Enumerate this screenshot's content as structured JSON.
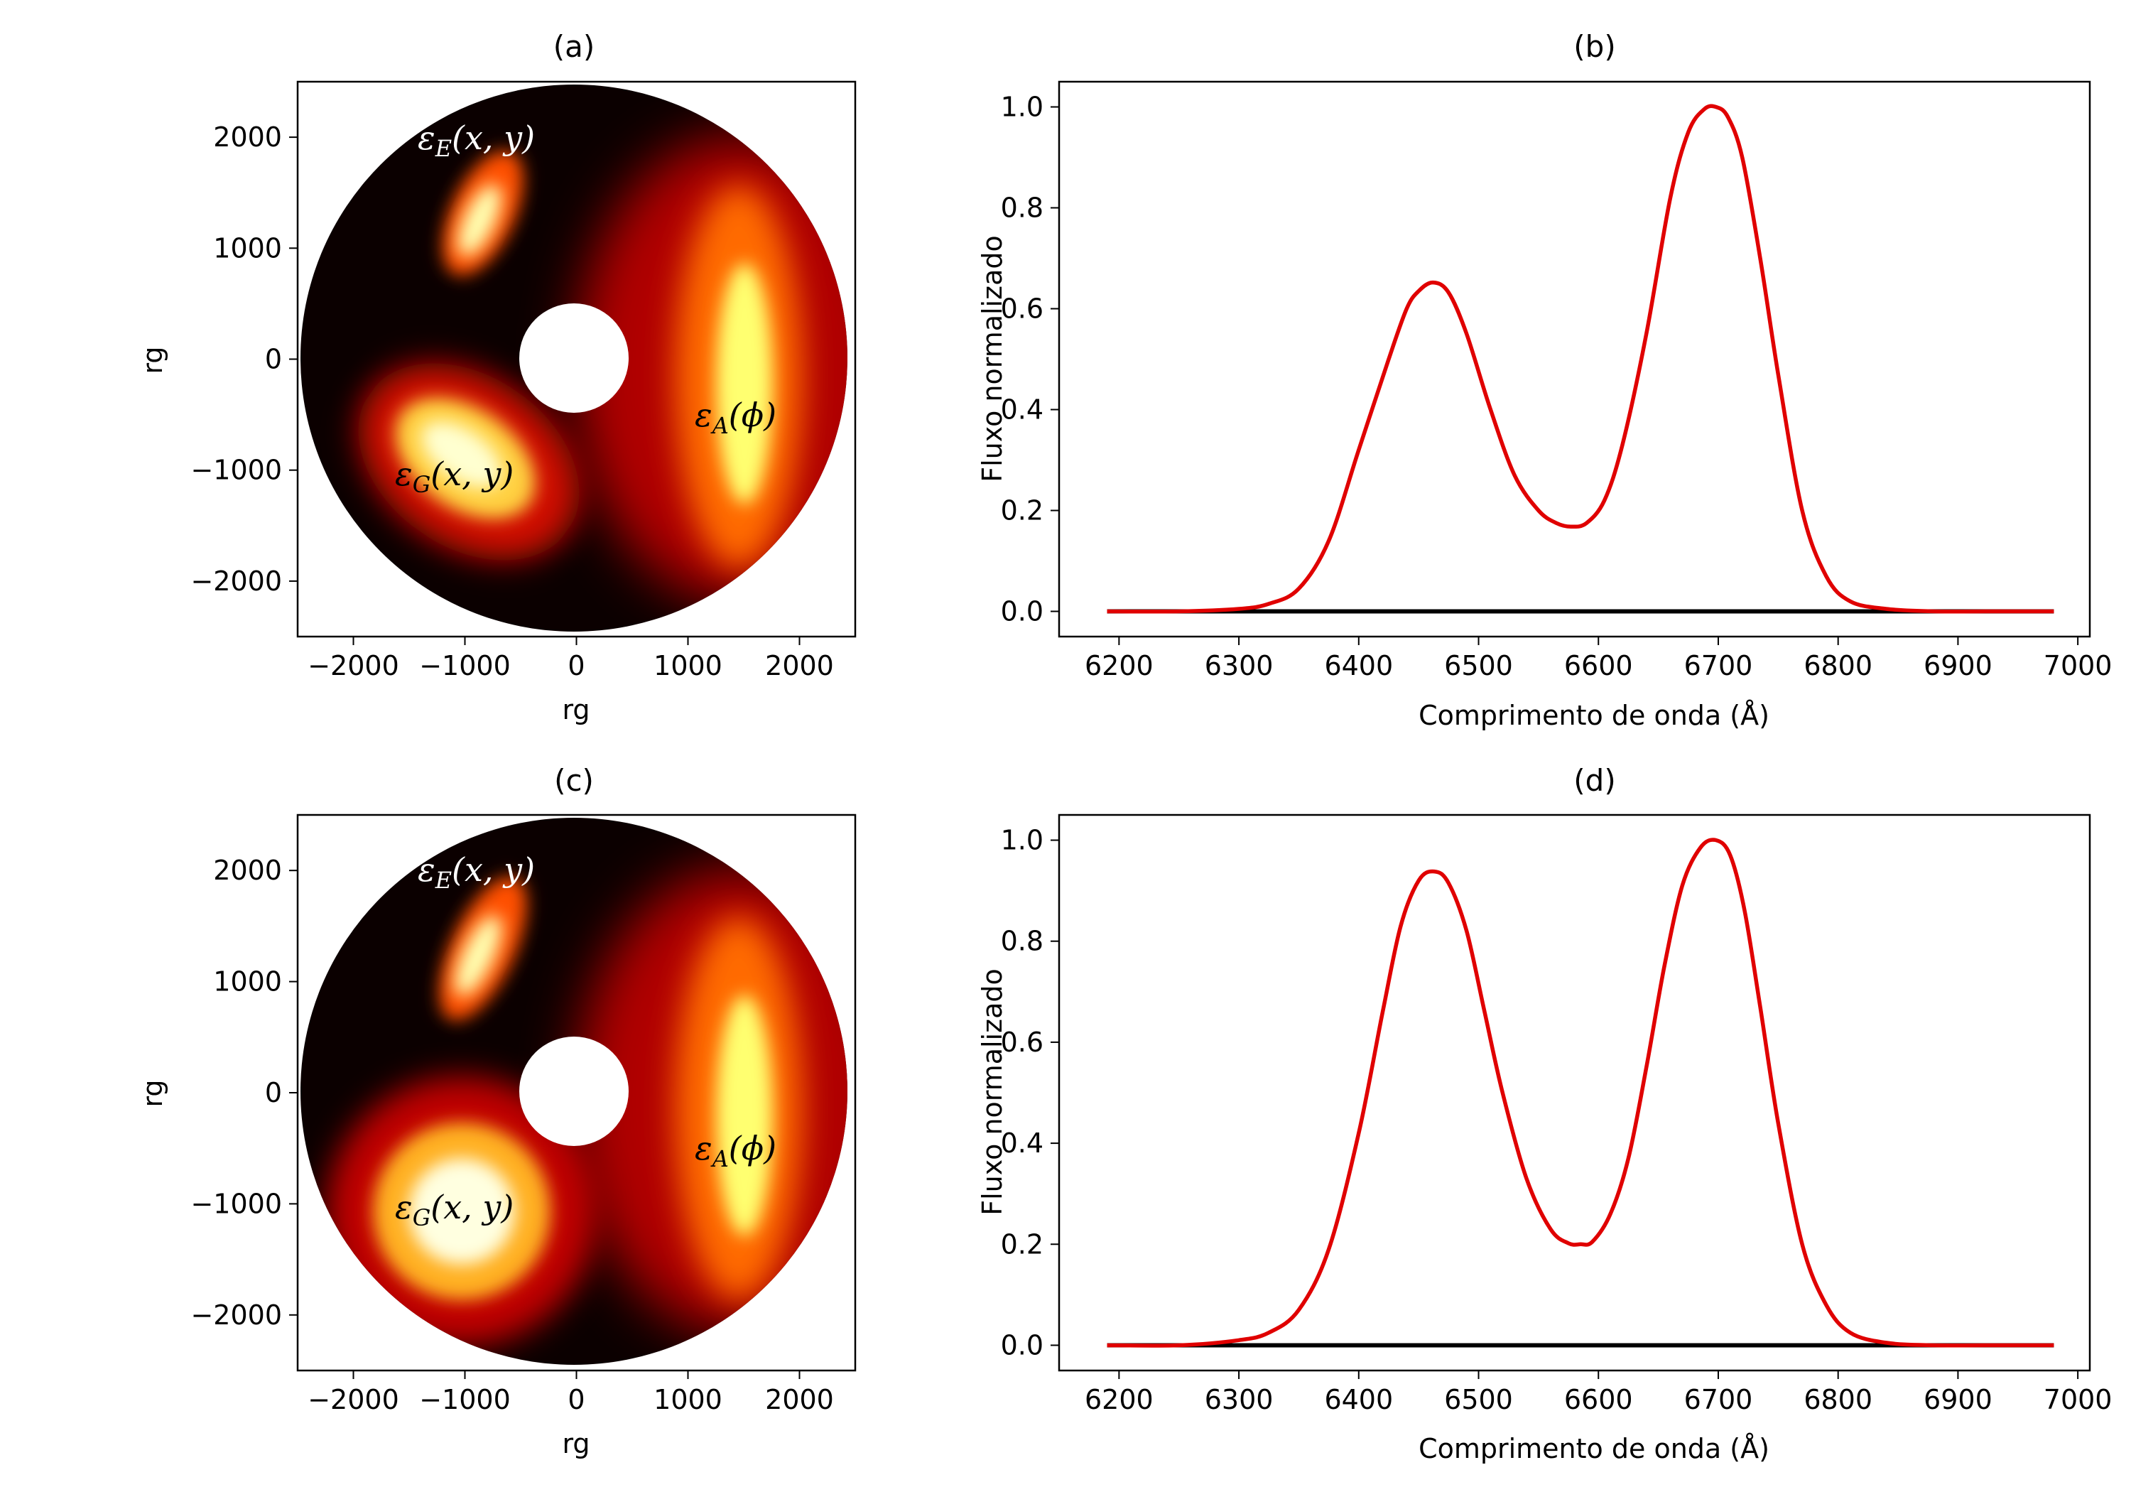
{
  "figure": {
    "disk_panels": [
      {
        "id": "a",
        "title": "(a)",
        "xlabel": "rg",
        "ylabel": "rg",
        "xlim": [
          -2500,
          2500
        ],
        "ylim": [
          -2500,
          2500
        ],
        "xticks": [
          -2000,
          -1000,
          0,
          1000,
          2000
        ],
        "yticks": [
          -2000,
          -1000,
          0,
          1000,
          2000
        ],
        "xtick_labels": [
          "−2000",
          "−1000",
          "0",
          "1000",
          "2000"
        ],
        "ytick_labels": [
          "−2000",
          "−1000",
          "0",
          "1000",
          "2000"
        ],
        "labels": {
          "E": {
            "sym": "ε",
            "sub": "E",
            "args": "(x, y)",
            "color": "#ffffff"
          },
          "G": {
            "sym": "ε",
            "sub": "G",
            "args": "(x, y)",
            "color": "#000000"
          },
          "A": {
            "sym": "ε",
            "sub": "A",
            "args": "(ϕ)",
            "color": "#000000"
          }
        }
      },
      {
        "id": "c",
        "title": "(c)",
        "xlabel": "rg",
        "ylabel": "rg",
        "xlim": [
          -2500,
          2500
        ],
        "ylim": [
          -2500,
          2500
        ],
        "xticks": [
          -2000,
          -1000,
          0,
          1000,
          2000
        ],
        "yticks": [
          -2000,
          -1000,
          0,
          1000,
          2000
        ],
        "xtick_labels": [
          "−2000",
          "−1000",
          "0",
          "1000",
          "2000"
        ],
        "ytick_labels": [
          "−2000",
          "−1000",
          "0",
          "1000",
          "2000"
        ],
        "labels": {
          "E": {
            "sym": "ε",
            "sub": "E",
            "args": "(x, y)",
            "color": "#ffffff"
          },
          "G": {
            "sym": "ε",
            "sub": "G",
            "args": "(x, y)",
            "color": "#000000"
          },
          "A": {
            "sym": "ε",
            "sub": "A",
            "args": "(ϕ)",
            "color": "#000000"
          }
        }
      }
    ],
    "colormap": "hot"
  },
  "chart_data": [
    {
      "type": "line",
      "panel": "b",
      "title": "(b)",
      "xlabel": "Comprimento de onda (Å)",
      "ylabel": "Fluxo normalizado",
      "xlim": [
        6150,
        7010
      ],
      "ylim": [
        -0.05,
        1.05
      ],
      "xticks": [
        6200,
        6300,
        6400,
        6500,
        6600,
        6700,
        6800,
        6900,
        7000
      ],
      "yticks": [
        0.0,
        0.2,
        0.4,
        0.6,
        0.8,
        1.0
      ],
      "ytick_labels": [
        "0.0",
        "0.2",
        "0.4",
        "0.6",
        "0.8",
        "1.0"
      ],
      "series": [
        {
          "color": "#e00000",
          "x": [
            6190,
            6250,
            6300,
            6325,
            6350,
            6375,
            6400,
            6425,
            6440,
            6450,
            6462,
            6475,
            6490,
            6510,
            6530,
            6550,
            6565,
            6577,
            6590,
            6605,
            6620,
            6640,
            6660,
            6675,
            6688,
            6698,
            6708,
            6720,
            6735,
            6750,
            6770,
            6790,
            6810,
            6840,
            6880,
            6930,
            6980
          ],
          "y": [
            0.0,
            0.0,
            0.005,
            0.015,
            0.045,
            0.14,
            0.32,
            0.5,
            0.6,
            0.635,
            0.652,
            0.632,
            0.55,
            0.4,
            0.27,
            0.2,
            0.175,
            0.168,
            0.175,
            0.22,
            0.33,
            0.55,
            0.82,
            0.95,
            0.995,
            1.0,
            0.98,
            0.9,
            0.7,
            0.47,
            0.2,
            0.07,
            0.02,
            0.005,
            0.0,
            0.0,
            0.0
          ]
        },
        {
          "color": "#000000",
          "x": [
            6190,
            6980
          ],
          "y": [
            0.0,
            0.0
          ]
        }
      ]
    },
    {
      "type": "line",
      "panel": "d",
      "title": "(d)",
      "xlabel": "Comprimento de onda (Å)",
      "ylabel": "Fluxo normalizado",
      "xlim": [
        6150,
        7010
      ],
      "ylim": [
        -0.05,
        1.05
      ],
      "xticks": [
        6200,
        6300,
        6400,
        6500,
        6600,
        6700,
        6800,
        6900,
        7000
      ],
      "yticks": [
        0.0,
        0.2,
        0.4,
        0.6,
        0.8,
        1.0
      ],
      "ytick_labels": [
        "0.0",
        "0.2",
        "0.4",
        "0.6",
        "0.8",
        "1.0"
      ],
      "series": [
        {
          "color": "#e00000",
          "x": [
            6190,
            6250,
            6300,
            6325,
            6350,
            6375,
            6400,
            6420,
            6435,
            6450,
            6463,
            6475,
            6490,
            6505,
            6520,
            6540,
            6560,
            6575,
            6585,
            6595,
            6610,
            6625,
            6640,
            6655,
            6670,
            6685,
            6698,
            6710,
            6722,
            6735,
            6750,
            6770,
            6790,
            6810,
            6840,
            6880,
            6930,
            6980
          ],
          "y": [
            0.0,
            0.0,
            0.01,
            0.025,
            0.07,
            0.19,
            0.42,
            0.66,
            0.83,
            0.92,
            0.938,
            0.915,
            0.82,
            0.66,
            0.5,
            0.33,
            0.23,
            0.202,
            0.2,
            0.205,
            0.26,
            0.37,
            0.55,
            0.75,
            0.91,
            0.985,
            1.0,
            0.97,
            0.86,
            0.67,
            0.44,
            0.2,
            0.08,
            0.025,
            0.005,
            0.0,
            0.0,
            0.0
          ]
        },
        {
          "color": "#000000",
          "x": [
            6190,
            6980
          ],
          "y": [
            0.0,
            0.0
          ]
        }
      ]
    }
  ]
}
